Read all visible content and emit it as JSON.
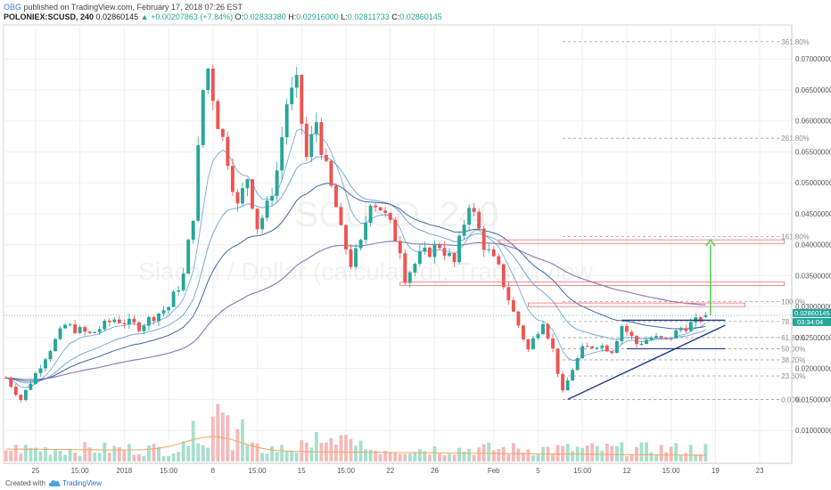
{
  "header": {
    "author": "OBG",
    "published": "published on TradingView.com, February 17, 2018 07:26 EST",
    "symbol": "POLONIEX:SCUSD, 240",
    "last": "0.02860145",
    "change": "+0.00207863 (+7.84%)",
    "O_label": "O:",
    "O": "0.02833380",
    "H_label": "H:",
    "H": "0.02916000",
    "L_label": "L:",
    "L": "0.02811733",
    "C_label": "C:",
    "C": "0.02860145"
  },
  "watermark": {
    "line1": "SCUSD, 240",
    "line2": "Siacoin / Dollar (calculated), TradingView"
  },
  "footer": {
    "created": "Created with",
    "brand": "TradingView"
  },
  "colors": {
    "up": "#26a69a",
    "down": "#ef5350",
    "ema_fast": "#5b9bd5",
    "ema_mid": "#1f4e9a",
    "ema_slow": "#7b68b5",
    "fib": "#9e9e9e",
    "arrow": "#5bd35b",
    "resistance": "#e57373",
    "volume_ma": "#f4a460"
  },
  "chart_data": {
    "type": "candlestick",
    "y_axis": {
      "ylim": [
        0.0047,
        0.0755
      ],
      "ticks": [
        "0.07000000",
        "0.06500000",
        "0.06000000",
        "0.05500000",
        "0.05000000",
        "0.04500000",
        "0.04000000",
        "0.03500000",
        "0.03000000",
        "0.02500000",
        "0.02000000",
        "0.01500000",
        "0.01000000"
      ],
      "price_label": "0.02860145",
      "countdown": "03:34:04"
    },
    "x_axis": {
      "ticks": [
        {
          "label": "25",
          "i": 6
        },
        {
          "label": "15:00",
          "i": 15
        },
        {
          "label": "2018",
          "i": 24
        },
        {
          "label": "15:00",
          "i": 33
        },
        {
          "label": "8",
          "i": 42
        },
        {
          "label": "15:00",
          "i": 51
        },
        {
          "label": "15",
          "i": 60
        },
        {
          "label": "15:00",
          "i": 69
        },
        {
          "label": "22",
          "i": 78
        },
        {
          "label": "26",
          "i": 87
        },
        {
          "label": "Feb",
          "i": 99
        },
        {
          "label": "5",
          "i": 108
        },
        {
          "label": "15:00",
          "i": 117
        },
        {
          "label": "12",
          "i": 126
        },
        {
          "label": "15:00",
          "i": 135
        },
        {
          "label": "19",
          "i": 144
        },
        {
          "label": "23",
          "i": 153
        }
      ],
      "bars_total": 160
    },
    "fibonacci": [
      {
        "label": "361.80%",
        "value": 0.0728
      },
      {
        "label": "261.80%",
        "value": 0.0572
      },
      {
        "label": "161.80%",
        "value": 0.0413
      },
      {
        "label": "100.0%",
        "value": 0.0308
      },
      {
        "label": "78.60%",
        "value": 0.0276
      },
      {
        "label": "61.80%",
        "value": 0.025
      },
      {
        "label": "50.00%",
        "value": 0.0232
      },
      {
        "label": "38.20%",
        "value": 0.0214
      },
      {
        "label": "23.60%",
        "value": 0.0188
      },
      {
        "label": "0.00%",
        "value": 0.015
      }
    ],
    "anchors": [
      [
        0,
        0.0185
      ],
      [
        3,
        0.015
      ],
      [
        8,
        0.022
      ],
      [
        12,
        0.027
      ],
      [
        17,
        0.0255
      ],
      [
        22,
        0.028
      ],
      [
        27,
        0.0268
      ],
      [
        30,
        0.0285
      ],
      [
        33,
        0.03
      ],
      [
        36,
        0.035
      ],
      [
        38,
        0.045
      ],
      [
        40,
        0.065
      ],
      [
        41,
        0.0685
      ],
      [
        43,
        0.06
      ],
      [
        45,
        0.054
      ],
      [
        47,
        0.046
      ],
      [
        49,
        0.051
      ],
      [
        51,
        0.043
      ],
      [
        53,
        0.046
      ],
      [
        55,
        0.052
      ],
      [
        57,
        0.063
      ],
      [
        59,
        0.0655
      ],
      [
        61,
        0.054
      ],
      [
        63,
        0.06
      ],
      [
        65,
        0.052
      ],
      [
        67,
        0.046
      ],
      [
        68,
        0.042
      ],
      [
        70,
        0.037
      ],
      [
        72,
        0.04
      ],
      [
        74,
        0.0475
      ],
      [
        76,
        0.046
      ],
      [
        78,
        0.043
      ],
      [
        80,
        0.0395
      ],
      [
        81,
        0.0348
      ],
      [
        84,
        0.038
      ],
      [
        88,
        0.04
      ],
      [
        91,
        0.037
      ],
      [
        94,
        0.047
      ],
      [
        97,
        0.04
      ],
      [
        100,
        0.036
      ],
      [
        103,
        0.029
      ],
      [
        106,
        0.023
      ],
      [
        109,
        0.028
      ],
      [
        111,
        0.023
      ],
      [
        113,
        0.016
      ],
      [
        115,
        0.02
      ],
      [
        117,
        0.023
      ],
      [
        120,
        0.024
      ],
      [
        123,
        0.023
      ],
      [
        125,
        0.027
      ],
      [
        128,
        0.024
      ],
      [
        131,
        0.025
      ],
      [
        134,
        0.0245
      ],
      [
        137,
        0.0265
      ],
      [
        140,
        0.0275
      ],
      [
        142,
        0.0286
      ]
    ],
    "lines": {
      "resistance": [
        {
          "value": 0.0405,
          "from_i": 100,
          "to_i": 158
        },
        {
          "value": 0.0337,
          "from_i": 80,
          "to_i": 158
        },
        {
          "value": 0.0303,
          "from_i": 106,
          "to_i": 150
        }
      ],
      "target_arrow": {
        "i": 143,
        "from": 0.0286,
        "to": 0.0408
      },
      "triangle_top": 0.0278,
      "triangle_bottom_start": {
        "i": 114,
        "value": 0.015
      },
      "triangle_bottom_end": {
        "i": 146,
        "value": 0.027
      }
    }
  }
}
